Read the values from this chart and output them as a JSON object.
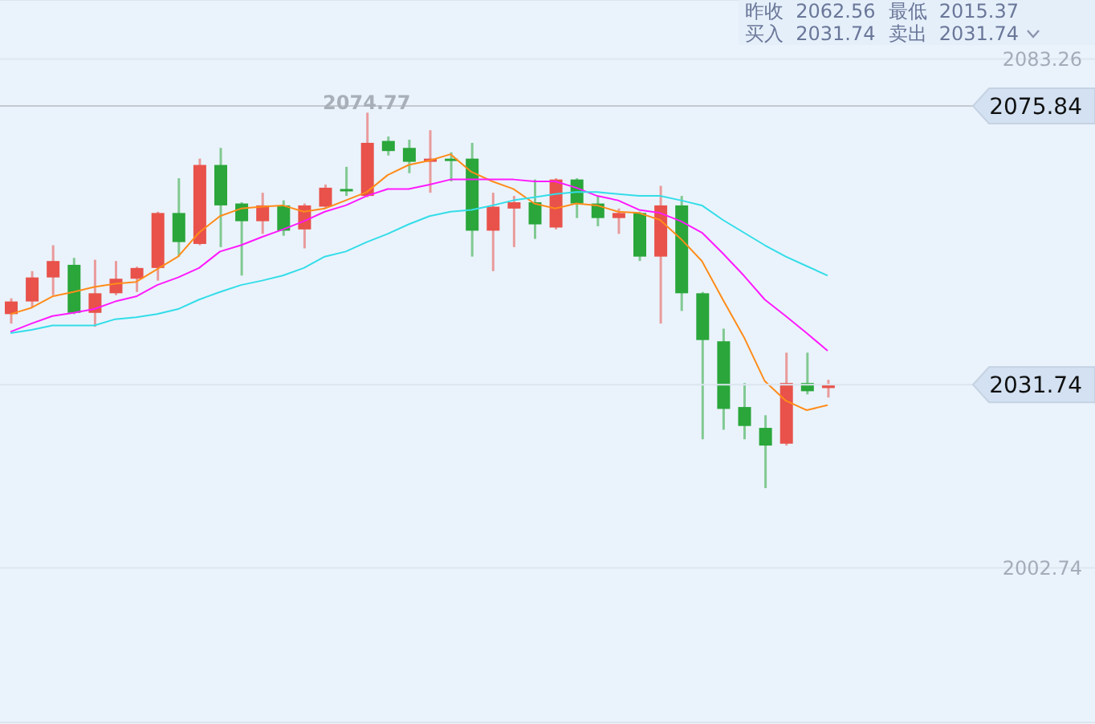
{
  "chart_data": {
    "type": "candlestick",
    "categories": [
      null,
      null,
      null,
      null,
      null,
      null,
      null,
      null,
      null,
      null,
      null,
      null,
      null,
      null,
      null,
      null,
      null,
      null,
      null,
      null,
      null,
      null,
      null,
      null,
      null,
      null,
      null,
      null,
      null,
      null,
      null,
      null,
      null,
      null,
      null,
      null,
      null,
      null,
      null,
      null
    ],
    "ohlc": [
      [
        2042.9,
        2045.4,
        2041.4,
        2044.9
      ],
      [
        2044.9,
        2049.7,
        2043.9,
        2048.7
      ],
      [
        2048.7,
        2053.8,
        2045.9,
        2051.3
      ],
      [
        2050.7,
        2051.8,
        2042.9,
        2043.1
      ],
      [
        2043.1,
        2051.5,
        2040.9,
        2046.2
      ],
      [
        2046.2,
        2051.3,
        2045.9,
        2048.5
      ],
      [
        2048.5,
        2050.4,
        2046.4,
        2050.2
      ],
      [
        2050.2,
        2059.1,
        2048.2,
        2058.9
      ],
      [
        2058.9,
        2064.4,
        2052.0,
        2054.3
      ],
      [
        2054.0,
        2067.5,
        2053.8,
        2066.5
      ],
      [
        2066.5,
        2069.2,
        2053.5,
        2060.1
      ],
      [
        2060.4,
        2060.6,
        2049.0,
        2057.6
      ],
      [
        2057.6,
        2062.1,
        2055.6,
        2060.1
      ],
      [
        2060.1,
        2060.9,
        2055.3,
        2056.1
      ],
      [
        2056.3,
        2060.4,
        2053.3,
        2060.1
      ],
      [
        2059.9,
        2063.4,
        2059.6,
        2062.9
      ],
      [
        2062.7,
        2066.2,
        2061.6,
        2062.4
      ],
      [
        2061.6,
        2074.77,
        2061.4,
        2070.0
      ],
      [
        2070.3,
        2071.0,
        2068.0,
        2068.7
      ],
      [
        2069.2,
        2070.5,
        2065.2,
        2067.0
      ],
      [
        2067.0,
        2072.0,
        2062.1,
        2067.5
      ],
      [
        2067.5,
        2068.5,
        2063.9,
        2067.2
      ],
      [
        2067.5,
        2070.0,
        2052.0,
        2056.1
      ],
      [
        2056.1,
        2062.1,
        2049.7,
        2059.9
      ],
      [
        2059.6,
        2061.6,
        2053.5,
        2060.6
      ],
      [
        2060.6,
        2064.2,
        2054.8,
        2057.1
      ],
      [
        2056.6,
        2064.4,
        2056.3,
        2064.2
      ],
      [
        2064.2,
        2064.4,
        2058.1,
        2060.4
      ],
      [
        2060.4,
        2061.6,
        2056.8,
        2058.1
      ],
      [
        2058.1,
        2059.6,
        2055.6,
        2058.9
      ],
      [
        2058.9,
        2059.1,
        2051.3,
        2052.0
      ],
      [
        2052.0,
        2063.2,
        2041.4,
        2060.1
      ],
      [
        2060.1,
        2061.6,
        2043.4,
        2046.2
      ],
      [
        2046.2,
        2046.4,
        2023.1,
        2038.8
      ],
      [
        2038.6,
        2040.6,
        2024.6,
        2027.9
      ],
      [
        2028.2,
        2032.0,
        2023.1,
        2025.2
      ],
      [
        2024.9,
        2026.9,
        2015.37,
        2022.1
      ],
      [
        2022.4,
        2036.8,
        2022.1,
        2032.0
      ],
      [
        2032.0,
        2036.8,
        2030.2,
        2030.7
      ],
      [
        2031.2,
        2032.5,
        2029.7,
        2031.74
      ]
    ],
    "colors": [
      "#e8524a",
      "#e8524a",
      "#e8524a",
      "#2aa63a",
      "#e8524a",
      "#e8524a",
      "#e8524a",
      "#e8524a",
      "#2aa63a",
      "#e8524a",
      "#2aa63a",
      "#2aa63a",
      "#e8524a",
      "#2aa63a",
      "#e8524a",
      "#e8524a",
      "#2aa63a",
      "#e8524a",
      "#2aa63a",
      "#2aa63a",
      "#e8524a",
      "#2aa63a",
      "#2aa63a",
      "#e8524a",
      "#e8524a",
      "#2aa63a",
      "#e8524a",
      "#2aa63a",
      "#2aa63a",
      "#e8524a",
      "#2aa63a",
      "#e8524a",
      "#2aa63a",
      "#2aa63a",
      "#2aa63a",
      "#2aa63a",
      "#2aa63a",
      "#e8524a",
      "#2aa63a",
      "#e8524a"
    ],
    "series": [
      {
        "type": "line",
        "color": "#ff8c1a",
        "values": [
          2042.9,
          2043.9,
          2045.7,
          2046.4,
          2047.2,
          2047.7,
          2048.0,
          2050.0,
          2052.0,
          2055.8,
          2058.4,
          2059.6,
          2059.9,
          2060.1,
          2059.1,
          2059.6,
          2060.9,
          2062.2,
          2064.9,
          2066.5,
          2067.2,
          2068.2,
          2065.4,
          2063.9,
          2062.7,
          2060.4,
          2059.6,
          2060.4,
          2060.1,
          2059.1,
          2058.9,
          2057.8,
          2054.8,
          2051.3,
          2045.2,
          2039.3,
          2032.3,
          2029.2,
          2027.7,
          2028.5
        ]
      },
      {
        "type": "line",
        "color": "#ff1aff",
        "values": [
          2040.1,
          2041.4,
          2042.6,
          2043.1,
          2043.7,
          2044.9,
          2045.7,
          2047.5,
          2048.7,
          2050.2,
          2052.8,
          2053.8,
          2055.1,
          2056.3,
          2057.6,
          2059.1,
          2060.1,
          2061.6,
          2062.7,
          2062.7,
          2063.4,
          2064.2,
          2064.2,
          2064.2,
          2064.2,
          2063.9,
          2063.9,
          2062.9,
          2061.6,
          2060.9,
          2059.4,
          2058.9,
          2057.6,
          2055.8,
          2052.5,
          2049.0,
          2045.2,
          2042.6,
          2039.9,
          2037.1
        ]
      },
      {
        "type": "line",
        "color": "#33dde8",
        "values": [
          2039.9,
          2040.4,
          2041.1,
          2041.1,
          2041.1,
          2042.1,
          2042.4,
          2042.9,
          2043.7,
          2045.2,
          2046.4,
          2047.5,
          2048.2,
          2049.0,
          2050.2,
          2052.0,
          2052.8,
          2054.3,
          2055.6,
          2057.1,
          2058.4,
          2059.1,
          2059.4,
          2060.1,
          2060.9,
          2061.4,
          2061.9,
          2062.2,
          2062.2,
          2061.9,
          2061.6,
          2061.6,
          2060.9,
          2060.1,
          2057.8,
          2055.8,
          2053.8,
          2052.0,
          2050.5,
          2049.0
        ]
      }
    ],
    "ylim": [
      1978.3,
      2092.6
    ],
    "yticks": [
      2002.74,
      2083.26
    ],
    "grid": "y",
    "tick_labels": "y",
    "marker": "none",
    "ref_lines": [
      {
        "axis": "y",
        "value": 2075.84,
        "label": "2075.84",
        "color": "#c4c9d0"
      },
      {
        "axis": "y",
        "value": 2031.74,
        "label": "2031.74",
        "color": "#dce5ef"
      }
    ],
    "annotations": [
      "昨收  2062.56",
      "最低  2015.37",
      "买入  2031.74",
      "卖出  2031.74",
      "2074.77"
    ]
  }
}
